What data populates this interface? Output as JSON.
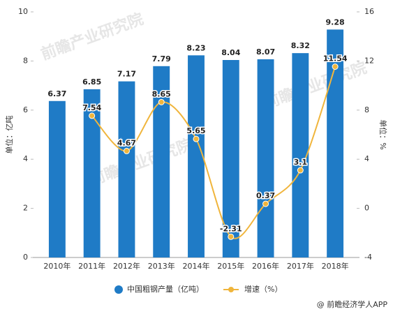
{
  "chart_data": {
    "type": "bar_line",
    "watermark": "前瞻产业研究院",
    "categories": [
      "2010年",
      "2011年",
      "2012年",
      "2013年",
      "2014年",
      "2015年",
      "2016年",
      "2017年",
      "2018年"
    ],
    "series": [
      {
        "name": "中国粗钢产量（亿吨）",
        "type": "bar",
        "color": "#1f7bc6",
        "values": [
          6.37,
          6.85,
          7.17,
          7.79,
          8.23,
          8.04,
          8.07,
          8.32,
          9.28
        ]
      },
      {
        "name": "增速（%）",
        "type": "line",
        "axis": "y2",
        "color": "#f0b53c",
        "values": [
          null,
          7.54,
          4.67,
          8.65,
          5.65,
          -2.31,
          0.37,
          3.1,
          11.54
        ]
      }
    ],
    "ylabel": "单位：亿吨",
    "y2label": "单位：%",
    "ylim": [
      0,
      10
    ],
    "yticks": [
      0,
      2,
      4,
      6,
      8,
      10
    ],
    "y2lim": [
      -4,
      16
    ],
    "y2ticks": [
      -4,
      0,
      4,
      8,
      12,
      16
    ],
    "legend": "bottom",
    "source": "@ 前瞻经济学人APP"
  }
}
